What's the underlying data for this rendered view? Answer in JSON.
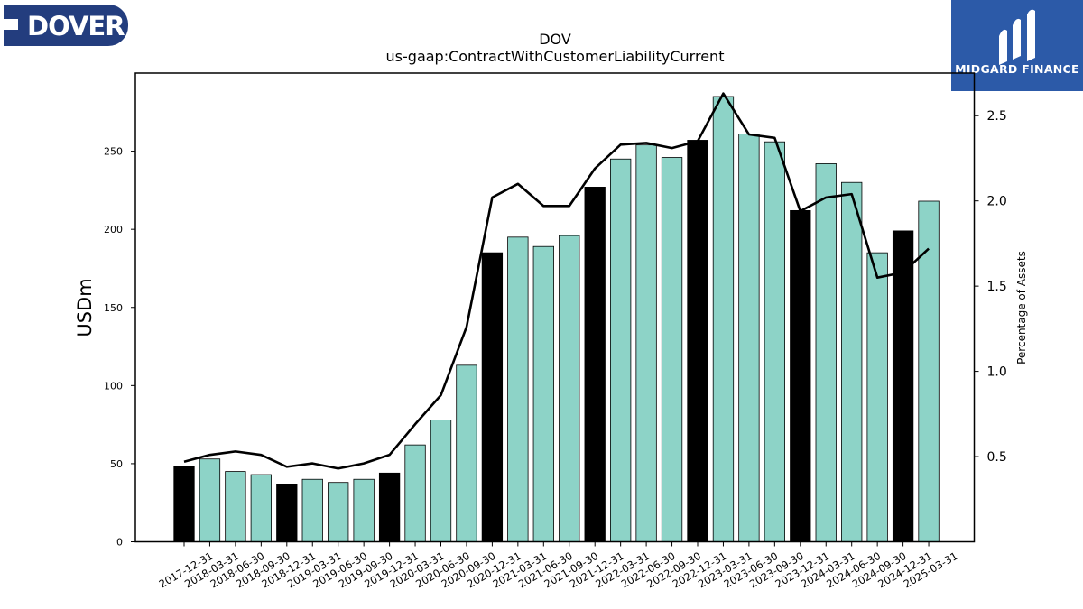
{
  "company_logo": {
    "text": "DOVER",
    "bg_color": "#233d7e"
  },
  "brand_logo": {
    "text": "MIDGARD FINANCE",
    "bg_color": "#2c5aa8"
  },
  "chart_data": {
    "type": "bar",
    "title": "DOV",
    "subtitle": "us-gaap:ContractWithCustomerLiabilityCurrent",
    "ylabel": "USDm",
    "y2label": "Percentage of Assets",
    "ylim": [
      0,
      300
    ],
    "y2lim": [
      0,
      2.75
    ],
    "yticks": [
      0,
      50,
      100,
      150,
      200,
      250
    ],
    "y2ticks": [
      0.5,
      1.0,
      1.5,
      2.0,
      2.5
    ],
    "grid": false,
    "colors": {
      "annual": "#000000",
      "quarterly": "#8dd3c7",
      "line": "#000000"
    },
    "categories": [
      "2017-12-31",
      "2018-03-31",
      "2018-06-30",
      "2018-09-30",
      "2018-12-31",
      "2019-03-31",
      "2019-06-30",
      "2019-09-30",
      "2019-12-31",
      "2020-03-31",
      "2020-06-30",
      "2020-09-30",
      "2020-12-31",
      "2021-03-31",
      "2021-06-30",
      "2021-09-30",
      "2021-12-31",
      "2022-03-31",
      "2022-06-30",
      "2022-09-30",
      "2022-12-31",
      "2023-03-31",
      "2023-06-30",
      "2023-09-30",
      "2023-12-31",
      "2024-03-31",
      "2024-06-30",
      "2024-09-30",
      "2024-12-31",
      "2025-03-31"
    ],
    "series": [
      {
        "kind": "bar",
        "values": [
          48,
          53,
          45,
          43,
          37,
          40,
          38,
          40,
          44,
          62,
          78,
          113,
          185,
          195,
          189,
          196,
          227,
          245,
          254,
          246,
          257,
          285,
          261,
          256,
          212,
          242,
          230,
          185,
          199,
          218
        ],
        "annual": [
          true,
          false,
          false,
          false,
          true,
          false,
          false,
          false,
          true,
          false,
          false,
          false,
          true,
          false,
          false,
          false,
          true,
          false,
          false,
          false,
          true,
          false,
          false,
          false,
          true,
          false,
          false,
          false,
          true,
          false
        ]
      },
      {
        "kind": "line",
        "axis": "right",
        "values": [
          0.47,
          0.51,
          0.53,
          0.51,
          0.44,
          0.46,
          0.43,
          0.46,
          0.51,
          0.69,
          0.86,
          1.26,
          2.02,
          2.1,
          1.97,
          1.97,
          2.19,
          2.33,
          2.34,
          2.31,
          2.35,
          2.63,
          2.39,
          2.37,
          1.94,
          2.02,
          2.04,
          1.55,
          1.58,
          1.72
        ]
      }
    ]
  }
}
